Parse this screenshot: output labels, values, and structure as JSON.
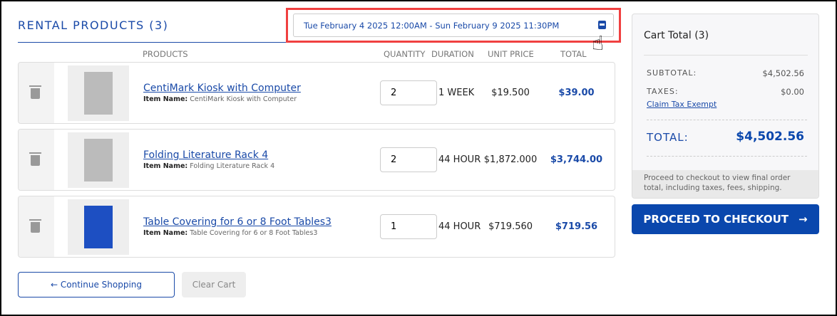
{
  "heading": "RENTAL PRODUCTS (3)",
  "date_range": "Tue February 4 2025 12:00AM - Sun February 9 2025 11:30PM",
  "columns": {
    "products": "PRODUCTS",
    "quantity": "QUANTITY",
    "duration": "DURATION",
    "unit_price": "UNIT PRICE",
    "total": "TOTAL"
  },
  "item_name_label": "Item Name:",
  "items": [
    {
      "name": "CentiMark Kiosk with Computer",
      "item_name": "CentiMark Kiosk with Computer",
      "quantity": "2",
      "duration": "1 WEEK",
      "unit_price": "$19.500",
      "total": "$39.00"
    },
    {
      "name": "Folding Literature Rack 4",
      "item_name": "Folding Literature Rack 4",
      "quantity": "2",
      "duration": "44 HOUR",
      "unit_price": "$1,872.000",
      "total": "$3,744.00"
    },
    {
      "name": "Table Covering for 6 or 8 Foot Tables3",
      "item_name": "Table Covering for 6 or 8 Foot Tables3",
      "quantity": "1",
      "duration": "44 HOUR",
      "unit_price": "$719.560",
      "total": "$719.56"
    }
  ],
  "continue_label": "← Continue Shopping",
  "clear_label": "Clear Cart",
  "cart": {
    "title": "Cart Total (3)",
    "subtotal_label": "SUBTOTAL:",
    "subtotal": "$4,502.56",
    "taxes_label": "TAXES:",
    "taxes": "$0.00",
    "claim": "Claim Tax Exempt",
    "total_label": "TOTAL:",
    "total": "$4,502.56",
    "note": "Proceed to checkout to view final order total, including taxes, fees, shipping."
  },
  "checkout_label": "PROCEED TO CHECKOUT",
  "colors": {
    "accent": "#0a47ad",
    "highlight": "#f04040"
  }
}
